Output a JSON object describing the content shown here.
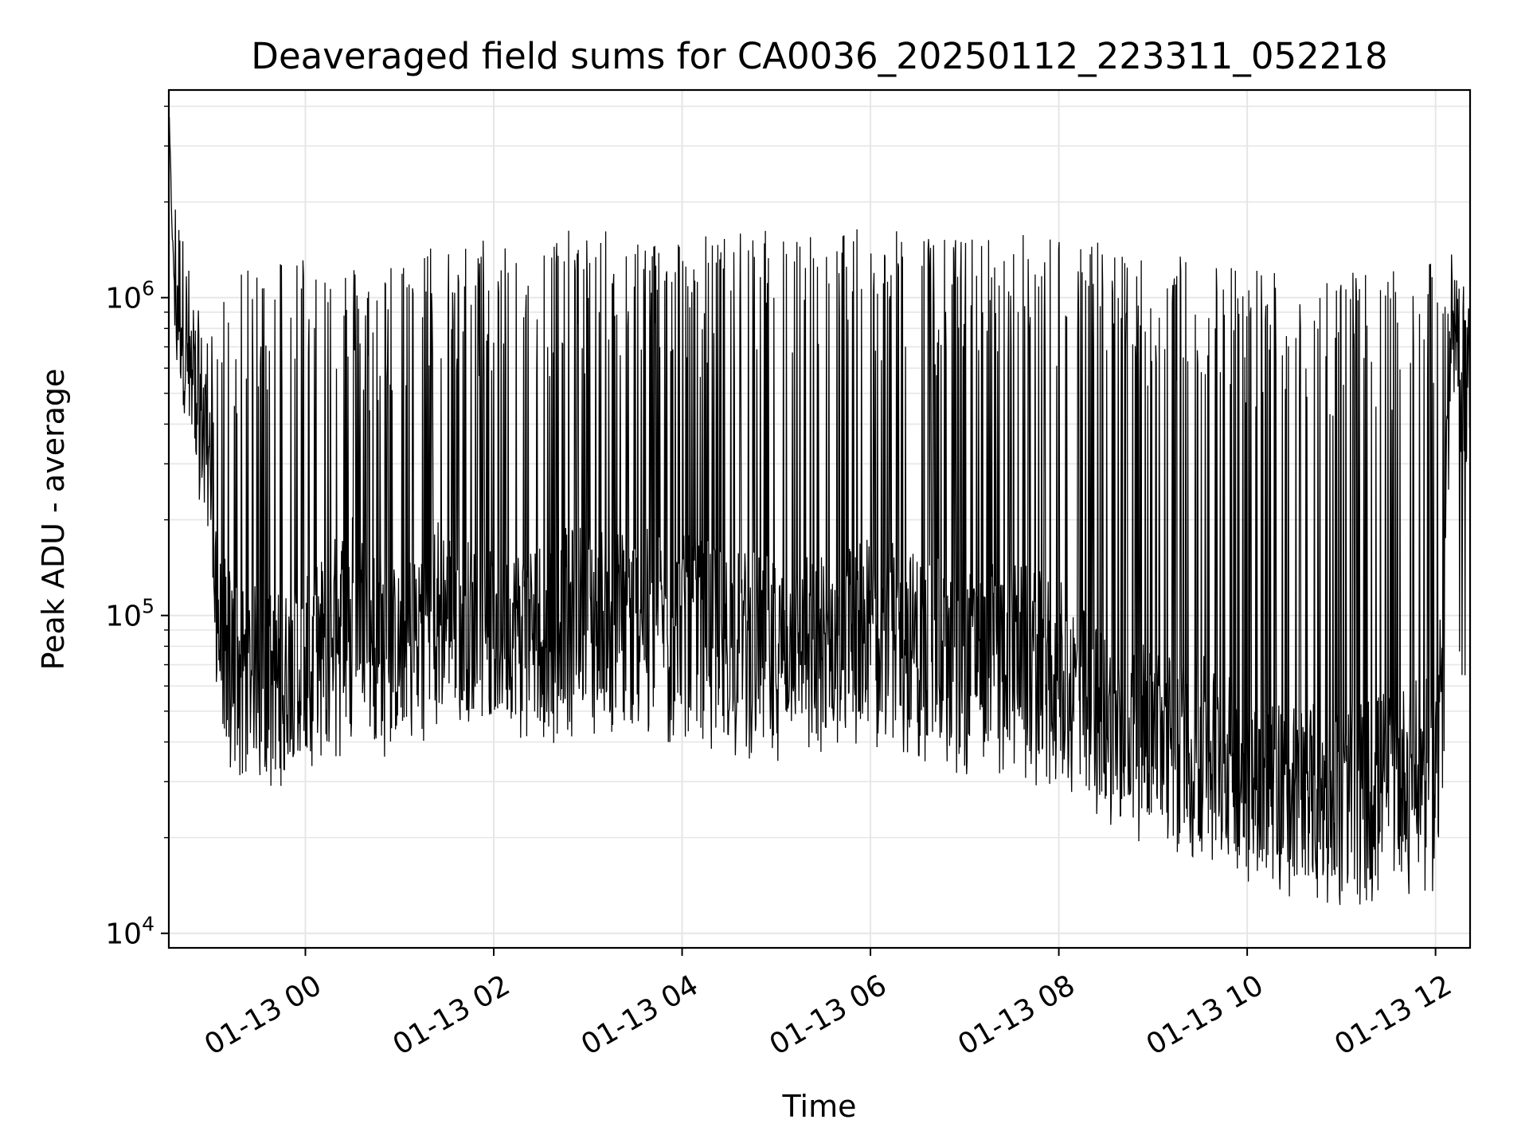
{
  "chart_data": {
    "type": "line",
    "title": "Deaveraged field sums for CA0036_20250112_223311_052218",
    "xlabel": "Time",
    "ylabel": "Peak ADU - average",
    "x_tick_labels": [
      "01-13 00",
      "01-13 02",
      "01-13 04",
      "01-13 06",
      "01-13 08",
      "01-13 10",
      "01-13 12"
    ],
    "y_tick_labels": [
      {
        "base": "10",
        "exp": "4"
      },
      {
        "base": "10",
        "exp": "5"
      },
      {
        "base": "10",
        "exp": "6"
      }
    ],
    "y_scale": "log",
    "ylim": [
      9000,
      4500000
    ],
    "xlim": [
      "2025-01-12 22:33",
      "2025-01-13 12:22"
    ],
    "grid": true,
    "line_color": "#000000",
    "grid_color": "#e6e6e6",
    "series": [
      {
        "x": [
          "2025-01-12 22:33",
          "2025-01-12 22:36",
          "2025-01-12 22:42",
          "2025-01-12 22:50",
          "2025-01-12 23:00",
          "2025-01-12 23:05",
          "2025-01-12 23:20",
          "2025-01-12 23:40",
          "2025-01-13 00:00",
          "2025-01-13 00:30",
          "2025-01-13 00:40",
          "2025-01-13 01:00",
          "2025-01-13 01:20",
          "2025-01-13 01:40",
          "2025-01-13 02:00",
          "2025-01-13 02:30",
          "2025-01-13 03:00",
          "2025-01-13 03:30",
          "2025-01-13 04:00",
          "2025-01-13 04:30",
          "2025-01-13 05:00",
          "2025-01-13 05:30",
          "2025-01-13 06:00",
          "2025-01-13 06:30",
          "2025-01-13 07:00",
          "2025-01-13 07:30",
          "2025-01-13 08:00",
          "2025-01-13 08:30",
          "2025-01-13 09:00",
          "2025-01-13 09:30",
          "2025-01-13 10:00",
          "2025-01-13 10:30",
          "2025-01-13 11:00",
          "2025-01-13 11:30",
          "2025-01-13 12:00",
          "2025-01-13 12:10",
          "2025-01-13 12:22"
        ],
        "baseline": [
          3800000,
          1200000,
          800000,
          500000,
          300000,
          80000,
          65000,
          60000,
          65000,
          110000,
          90000,
          70000,
          110000,
          90000,
          80000,
          90000,
          100000,
          95000,
          90000,
          85000,
          75000,
          80000,
          90000,
          80000,
          70000,
          75000,
          65000,
          45000,
          40000,
          38000,
          30000,
          27000,
          26000,
          30000,
          32000,
          600000,
          500000
        ],
        "spike_top": [
          3800000,
          1300000,
          900000,
          700000,
          800000,
          1000000,
          1200000,
          1400000,
          1500000,
          1300000,
          1200000,
          1400000,
          1500000,
          1500000,
          1600000,
          1600000,
          1650000,
          1600000,
          1600000,
          1600000,
          1650000,
          1650000,
          1650000,
          1600000,
          1550000,
          1600000,
          1600000,
          1500000,
          1400000,
          1350000,
          1300000,
          1250000,
          1200000,
          1200000,
          1300000,
          1400000,
          1000000
        ],
        "dip_bottom": [
          3800000,
          900000,
          600000,
          300000,
          200000,
          40000,
          35000,
          33000,
          35000,
          45000,
          40000,
          40000,
          50000,
          48000,
          45000,
          45000,
          48000,
          47000,
          45000,
          42000,
          38000,
          40000,
          45000,
          40000,
          35000,
          37000,
          32000,
          25000,
          22000,
          20000,
          17000,
          15000,
          14000,
          15000,
          16000,
          70000,
          70000
        ]
      }
    ]
  }
}
